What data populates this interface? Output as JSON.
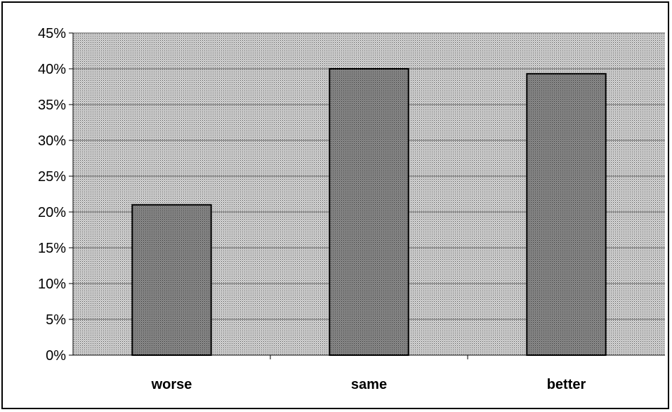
{
  "chart_data": {
    "type": "bar",
    "categories": [
      "worse",
      "same",
      "better"
    ],
    "values": [
      21,
      40,
      39.3
    ],
    "y_unit": "%",
    "ylim": [
      0,
      45
    ],
    "y_ticks": [
      0,
      5,
      10,
      15,
      20,
      25,
      30,
      35,
      40,
      45
    ],
    "y_tick_labels": [
      "0%",
      "5%",
      "10%",
      "15%",
      "20%",
      "25%",
      "30%",
      "35%",
      "40%",
      "45%"
    ],
    "grid": true,
    "legend": "none",
    "title": "",
    "xlabel": "",
    "ylabel": "",
    "colors": {
      "plot_background": "#b8b8b8",
      "bar_fill": "#7a7a7a",
      "gridline": "#555555",
      "border": "#000000"
    }
  }
}
